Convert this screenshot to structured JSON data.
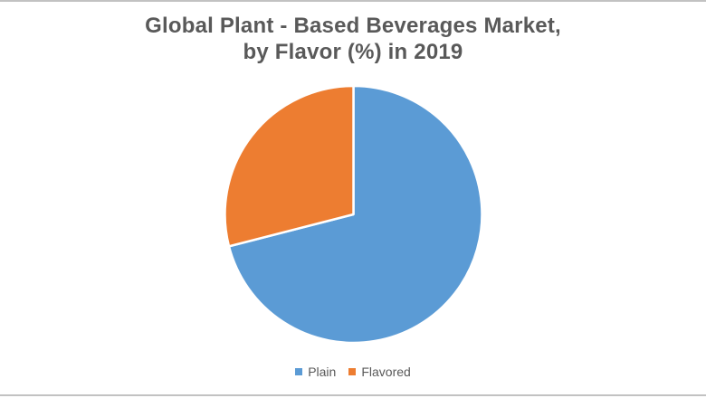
{
  "chart_data": {
    "type": "pie",
    "title": "Global Plant - Based Beverages Market, by Flavor (%) in 2019",
    "title_lines": [
      "Global Plant - Based Beverages Market,",
      "by Flavor (%) in 2019"
    ],
    "categories": [
      "Plain",
      "Flavored"
    ],
    "values": [
      71,
      29
    ],
    "unit": "%",
    "year": "2019",
    "colors": [
      "#5b9bd5",
      "#ed7d31"
    ],
    "slice_border_color": "#ffffff",
    "start_angle_deg": 0,
    "direction": "clockwise",
    "legend_position": "bottom",
    "title_color": "#595959",
    "legend_text_color": "#595959"
  },
  "page": {
    "background": "#ffffff",
    "edge_strip_color": "#c2c2c2"
  }
}
